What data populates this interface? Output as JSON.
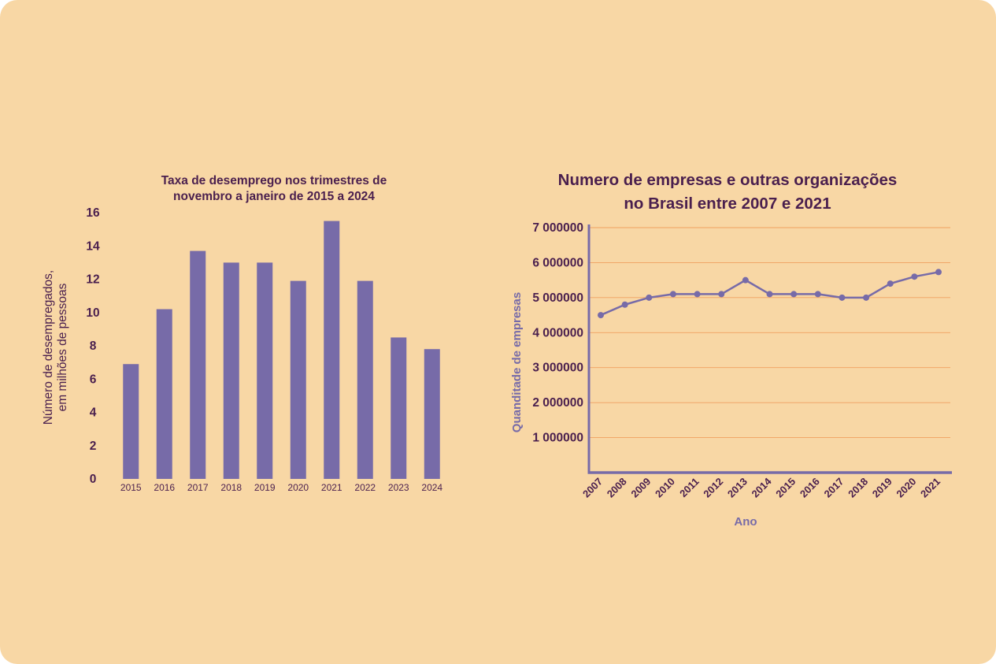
{
  "colors": {
    "background": "#f8d7a5",
    "text": "#4a1f4e",
    "bar": "#776ba8",
    "line": "#776ba8",
    "grid": "#f0a060",
    "axis": "#776ba8"
  },
  "chart_data": [
    {
      "type": "bar",
      "title": "Taxa de desemprego nos trimestres de novembro a janeiro de 2015 a 2024",
      "title_lines": [
        "Taxa de desemprego nos trimestres de",
        "novembro a janeiro de 2015 a 2024"
      ],
      "xlabel": "",
      "ylabel": "Número de desempregados, em milhões de pessoas",
      "ylabel_lines": [
        "Número de desempregados,",
        "em milhões de pessoas"
      ],
      "categories": [
        "2015",
        "2016",
        "2017",
        "2018",
        "2019",
        "2020",
        "2021",
        "2022",
        "2023",
        "2024"
      ],
      "values": [
        6.9,
        10.2,
        13.7,
        13.0,
        13.0,
        11.9,
        15.5,
        11.9,
        8.5,
        7.8
      ],
      "ylim": [
        0,
        16
      ],
      "yticks": [
        0,
        2,
        4,
        6,
        8,
        10,
        12,
        14,
        16
      ],
      "ytick_labels": [
        "0",
        "2",
        "4",
        "6",
        "8",
        "10",
        "12",
        "14",
        "16"
      ],
      "grid": false,
      "legend": "none"
    },
    {
      "type": "line",
      "title": "Numero de empresas e outras organizações no Brasil entre 2007 e 2021",
      "title_lines": [
        "Numero de empresas e outras organizações",
        "no Brasil entre 2007 e 2021"
      ],
      "xlabel": "Ano",
      "ylabel": "Quanditade de empresas",
      "x": [
        "2007",
        "2008",
        "2009",
        "2010",
        "2011",
        "2012",
        "2013",
        "2014",
        "2015",
        "2016",
        "2017",
        "2018",
        "2019",
        "2020",
        "2021"
      ],
      "values": [
        4500000,
        4800000,
        5000000,
        5100000,
        5100000,
        5100000,
        5500000,
        5100000,
        5100000,
        5100000,
        5000000,
        5000000,
        5400000,
        5600000,
        5730000
      ],
      "ylim": [
        0,
        7000000
      ],
      "yticks": [
        1000000,
        2000000,
        3000000,
        4000000,
        5000000,
        6000000,
        7000000
      ],
      "ytick_labels": [
        "1 000000",
        "2 000000",
        "3 000000",
        "4 000000",
        "5 000000",
        "6 000000",
        "7 000000"
      ],
      "grid": true,
      "legend": "none"
    }
  ]
}
